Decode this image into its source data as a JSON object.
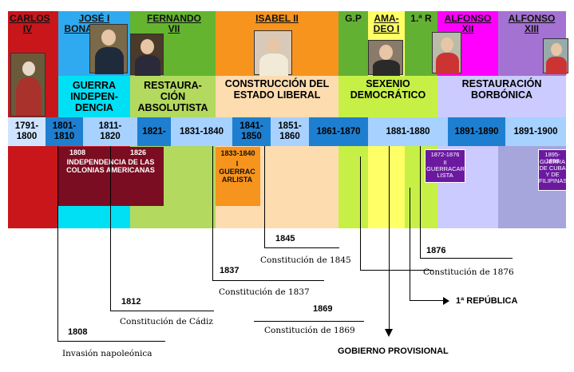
{
  "monarchs": [
    {
      "key": "carlos",
      "label": "CARLOS IV"
    },
    {
      "key": "jose",
      "label": "JOSÉ I BONAPARTE"
    },
    {
      "key": "fernando",
      "label": "FERNANDO VII"
    },
    {
      "key": "isabel",
      "label": "ISABEL II"
    },
    {
      "key": "gp",
      "label": "G.P"
    },
    {
      "key": "amadeo",
      "label": "AMA-DEO I"
    },
    {
      "key": "republica",
      "label": "1.ª R"
    },
    {
      "key": "alfonso12",
      "label": "ALFONSO XII"
    },
    {
      "key": "alfonso13",
      "label": "ALFONSO XIII"
    }
  ],
  "eras": [
    {
      "label": "GUERRA INDEPEN-DENCIA"
    },
    {
      "label": "RESTAURA-CIÓN ABSOLUTISTA"
    },
    {
      "label": "CONSTRUCCIÓN DEL ESTADO LIBERAL"
    },
    {
      "label": "SEXENIO DEMOCRÁTICO"
    },
    {
      "label": "RESTAURACIÓN BORBÓNICA"
    }
  ],
  "decades": [
    "1791-1800",
    "1801-1810",
    "1811-1820",
    "1821-",
    "1831-1840",
    "1841-1850",
    "1851-1860",
    "1861-1870",
    "1881-1880",
    "1891-1890",
    "1891-1900"
  ],
  "events": {
    "independencia_start": "1808",
    "independencia_end": "1826",
    "independencia_text": "INDEPENDENCIA DE LAS COLONIAS AMERICANAS",
    "carlista1_years": "1833-1840",
    "carlista1_text": "I GUERRAC ARLISTA",
    "carlista2_years": "1872-1876",
    "carlista2_text": "II GUERRACAR LISTA",
    "cuba_years": "1895-1898",
    "cuba_text": "GUERRA DE CUBA Y DE FILIPINAS"
  },
  "annotations": {
    "y1845": "1845",
    "c1845": "Constitución de 1845",
    "y1876": "1876",
    "c1876": "Constitución de 1876",
    "y1837": "1837",
    "c1837": "Constitución de 1837",
    "republica": "1ª REPÚBLICA",
    "y1812": "1812",
    "c1812": "Constitución de Cádiz",
    "y1869": "1869",
    "c1869": "Constitución de 1869",
    "y1808": "1808",
    "invasion": "Invasión napoleónica",
    "gobierno": "GOBIERNO PROVISIONAL"
  },
  "colors": {
    "carlos": "#c8161b",
    "jose": "#2faaf0",
    "fernando": "#64b430",
    "isabel": "#f7941d",
    "gp": "#63b133",
    "amadeo": "#ffff66",
    "republica": "#63b133",
    "alfonso12": "#ff00ff",
    "alfonso13": "#a472d2"
  }
}
